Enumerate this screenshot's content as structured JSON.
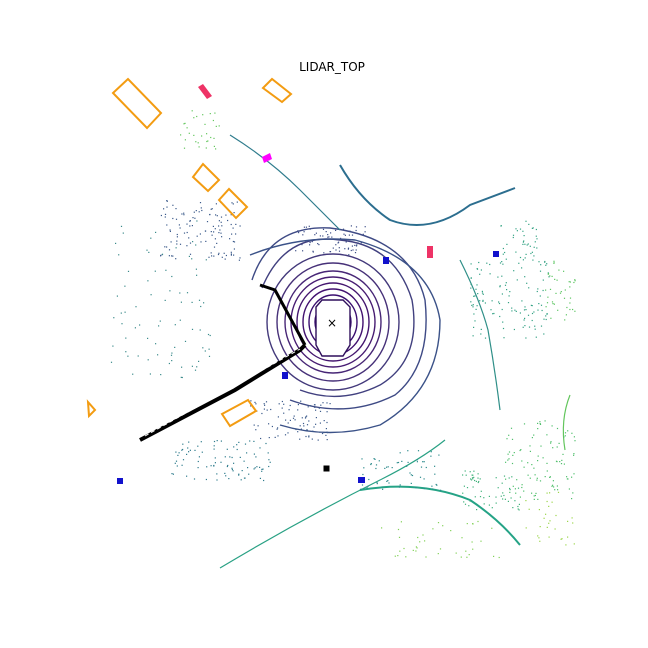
{
  "title": "LIDAR_TOP",
  "colors": {
    "ego_ring_inner": "#3b0f70",
    "ego_ring_outer": "#4d4d8f",
    "point_mid": "#2c6e8f",
    "point_far": "#3fbc73",
    "point_very_far": "#b5de2b",
    "car_box": "#f39c12",
    "pedestrian_box": "#1111cc",
    "barrier": "#000000",
    "bicycle": "#ee3366",
    "traffic_cone": "#ff00ff",
    "ego_marker": "#000000"
  },
  "legend_semantics": [
    "car-box",
    "pedestrian-box",
    "barrier-box",
    "bicycle-box",
    "cone-box"
  ]
}
